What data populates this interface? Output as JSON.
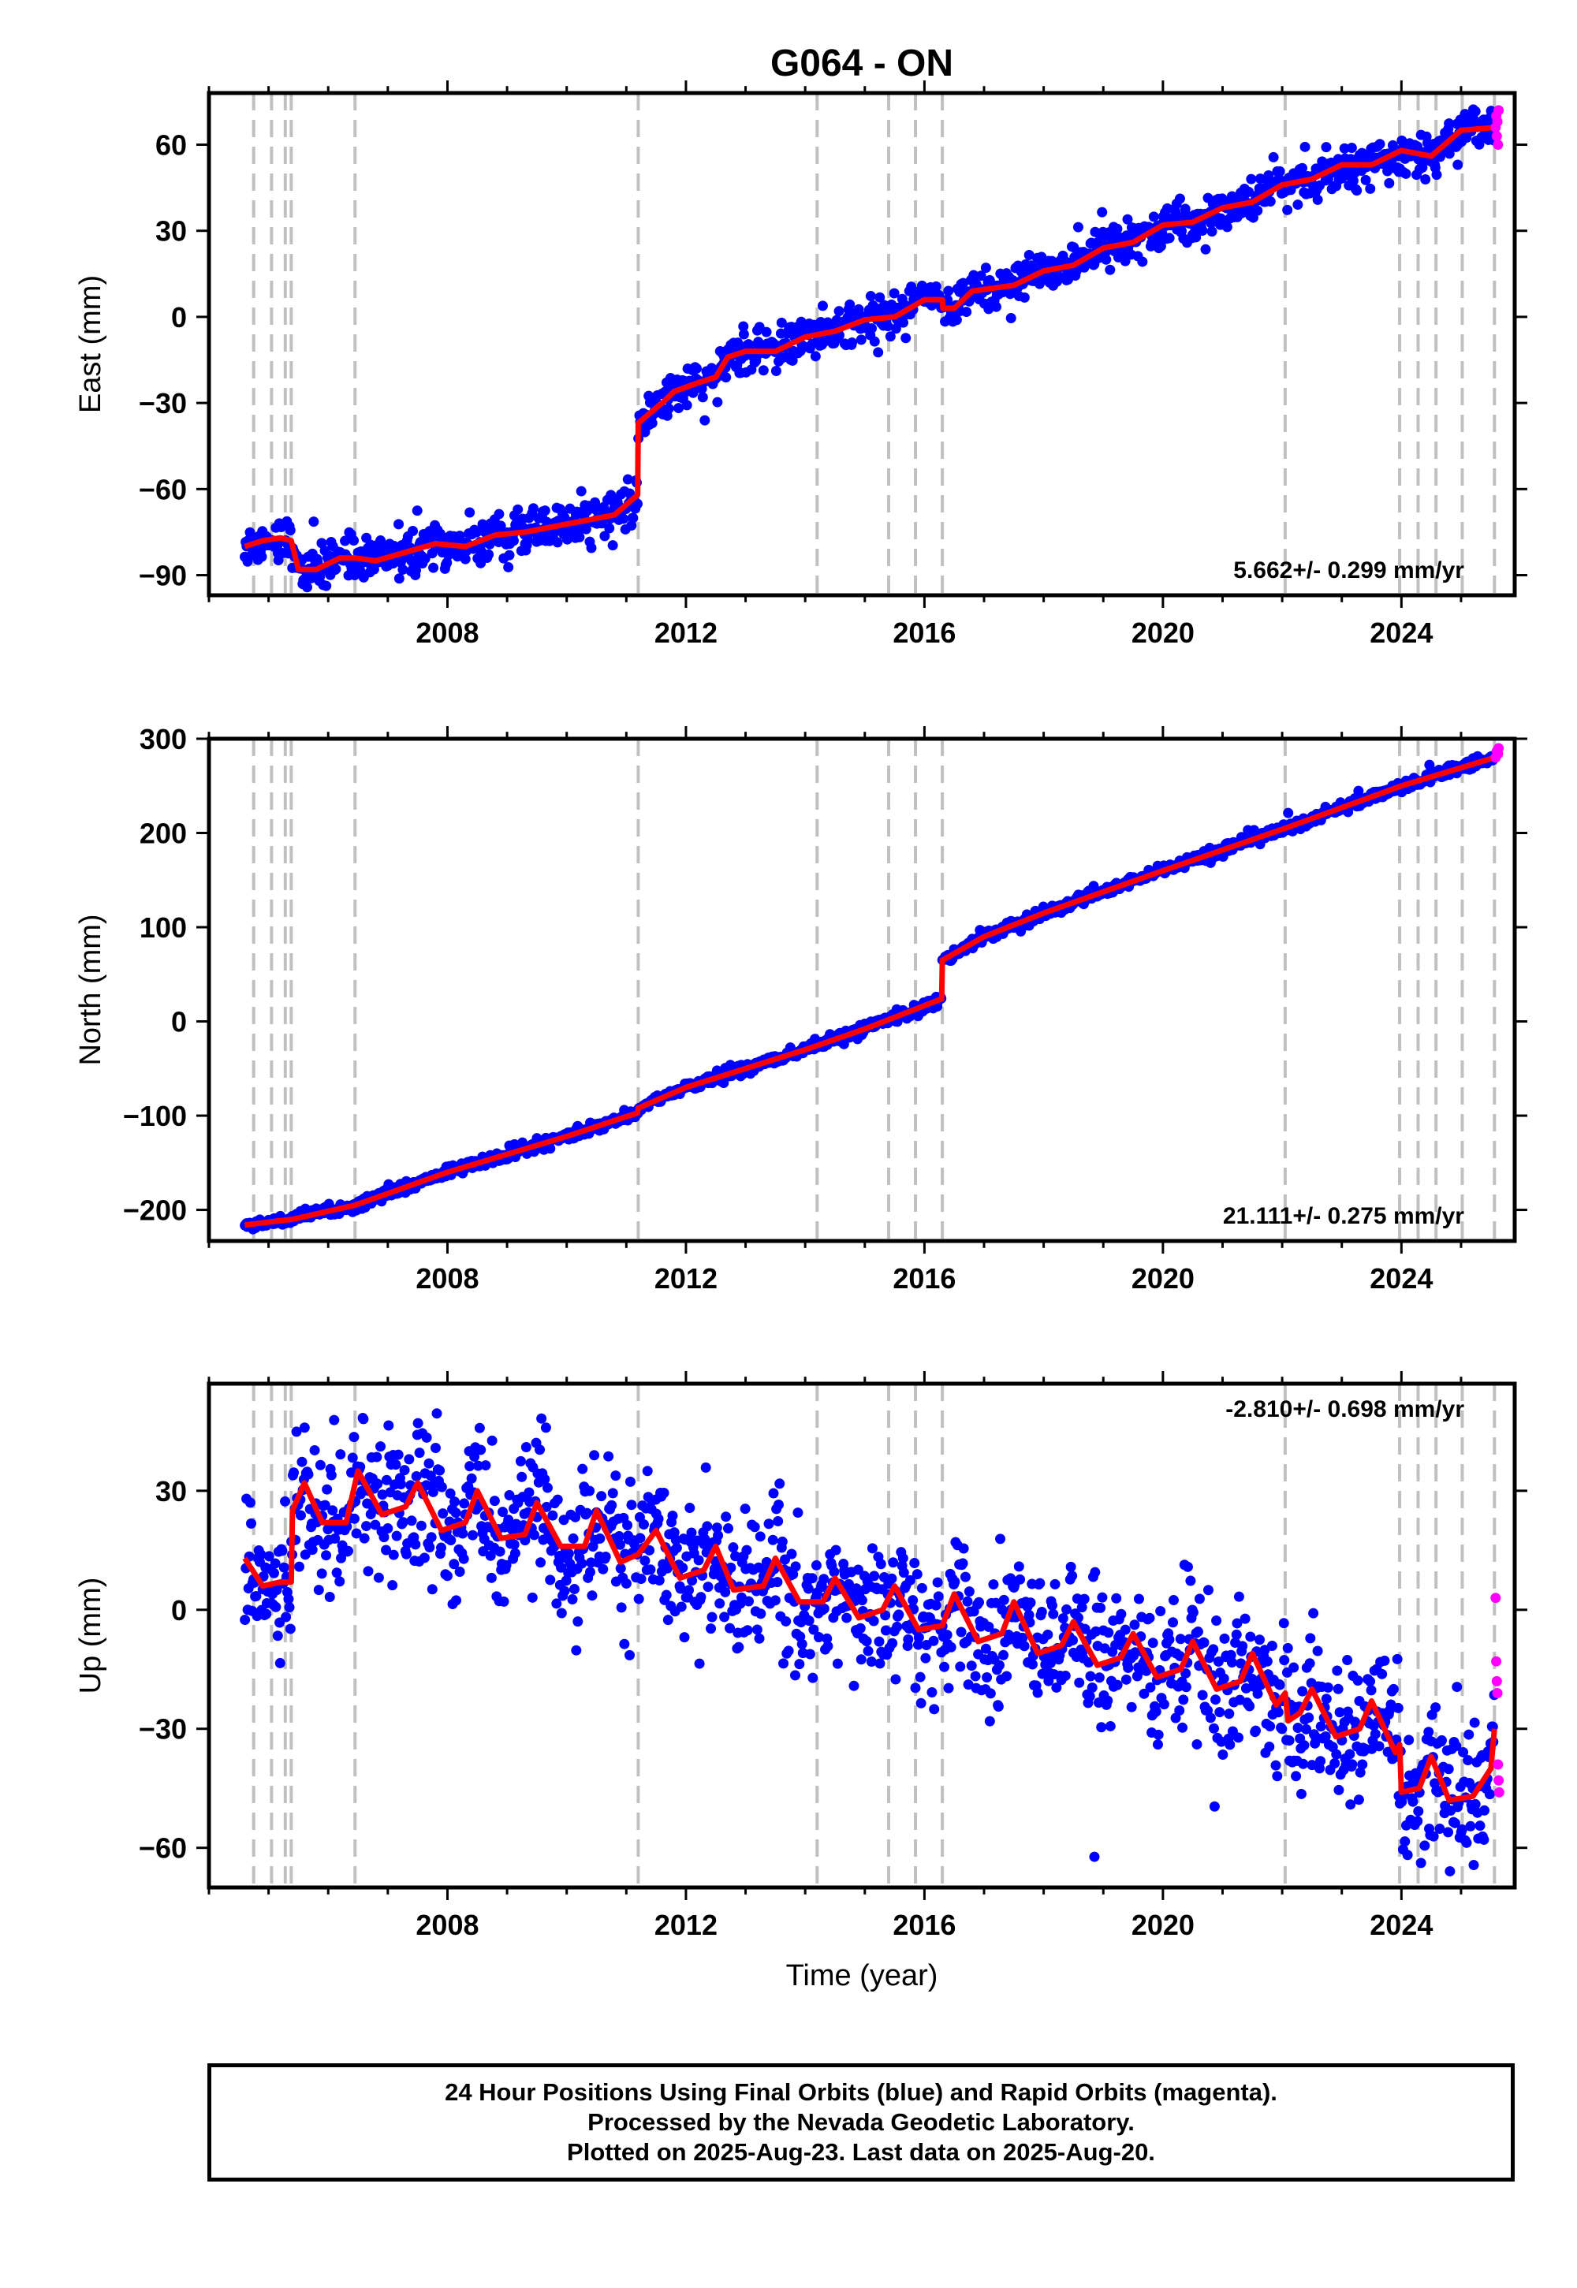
{
  "title": "G064 - ON",
  "colors": {
    "final_points": "#0000ff",
    "rapid_points": "#ff00ff",
    "model_line": "#ff0000",
    "event_lines": "#c0c0c0"
  },
  "event_lines_years": [
    2004.75,
    2005.05,
    2005.28,
    2005.38,
    2006.45,
    2011.2,
    2014.2,
    2015.4,
    2015.85,
    2016.3,
    2022.05,
    2023.97,
    2024.28,
    2024.58,
    2025.02,
    2025.56
  ],
  "x_axis_label": "Time (year)",
  "footer": {
    "line1": "24 Hour Positions Using Final Orbits (blue) and Rapid Orbits (magenta).",
    "line2": "Processed by the Nevada Geodetic Laboratory.",
    "line3": "Plotted on 2025-Aug-23. Last data on 2025-Aug-20."
  },
  "chart_data": [
    {
      "type": "scatter",
      "component": "east",
      "ylabel": "East (mm)",
      "rate_label": "5.662+/- 0.299 mm/yr",
      "rate_position": "bottom-right",
      "xlim": [
        2004.0,
        2025.9
      ],
      "ylim": [
        -97,
        78
      ],
      "x_ticks": [
        2008,
        2012,
        2016,
        2020,
        2024
      ],
      "y_ticks": [
        -90,
        -60,
        -30,
        0,
        30,
        60
      ],
      "scatter_noise_mm": 3.5,
      "model": [
        [
          2004.6,
          -80
        ],
        [
          2004.9,
          -78
        ],
        [
          2005.2,
          -77
        ],
        [
          2005.38,
          -78
        ],
        [
          2005.5,
          -88
        ],
        [
          2005.8,
          -88
        ],
        [
          2006.2,
          -84
        ],
        [
          2006.45,
          -84
        ],
        [
          2006.8,
          -85
        ],
        [
          2007.3,
          -82
        ],
        [
          2007.8,
          -79
        ],
        [
          2008.3,
          -80
        ],
        [
          2008.8,
          -76
        ],
        [
          2009.3,
          -75
        ],
        [
          2009.8,
          -73
        ],
        [
          2010.3,
          -71
        ],
        [
          2010.8,
          -69
        ],
        [
          2011.19,
          -62
        ],
        [
          2011.2,
          -37
        ],
        [
          2011.6,
          -30
        ],
        [
          2011.8,
          -26
        ],
        [
          2012.2,
          -23
        ],
        [
          2012.5,
          -21
        ],
        [
          2012.7,
          -14
        ],
        [
          2013.0,
          -12
        ],
        [
          2013.5,
          -12
        ],
        [
          2014.0,
          -7
        ],
        [
          2014.5,
          -5
        ],
        [
          2015.0,
          -1
        ],
        [
          2015.5,
          0
        ],
        [
          2016.0,
          6
        ],
        [
          2016.3,
          6
        ],
        [
          2016.31,
          3
        ],
        [
          2016.5,
          3
        ],
        [
          2016.8,
          9
        ],
        [
          2017.5,
          11
        ],
        [
          2018.0,
          16
        ],
        [
          2018.5,
          18
        ],
        [
          2019.0,
          24
        ],
        [
          2019.5,
          26
        ],
        [
          2020.0,
          32
        ],
        [
          2020.5,
          33
        ],
        [
          2021.0,
          38
        ],
        [
          2021.5,
          40
        ],
        [
          2022.0,
          46
        ],
        [
          2022.5,
          48
        ],
        [
          2023.0,
          53
        ],
        [
          2023.5,
          53
        ],
        [
          2024.0,
          58
        ],
        [
          2024.5,
          56
        ],
        [
          2025.0,
          65
        ],
        [
          2025.56,
          66
        ]
      ],
      "rapid": [
        [
          2025.58,
          66
        ],
        [
          2025.59,
          70
        ],
        [
          2025.6,
          63
        ],
        [
          2025.61,
          68
        ],
        [
          2025.62,
          60
        ],
        [
          2025.63,
          72
        ]
      ]
    },
    {
      "type": "scatter",
      "component": "north",
      "ylabel": "North (mm)",
      "rate_label": "21.111+/- 0.275 mm/yr",
      "rate_position": "bottom-right",
      "xlim": [
        2004.0,
        2025.9
      ],
      "ylim": [
        -233,
        300
      ],
      "x_ticks": [
        2008,
        2012,
        2016,
        2020,
        2024
      ],
      "y_ticks": [
        -200,
        -100,
        0,
        100,
        200,
        300
      ],
      "scatter_noise_mm": 3,
      "model": [
        [
          2004.6,
          -216
        ],
        [
          2005.4,
          -210
        ],
        [
          2006.45,
          -195
        ],
        [
          2008.0,
          -160
        ],
        [
          2010.0,
          -122
        ],
        [
          2011.19,
          -97
        ],
        [
          2011.2,
          -92
        ],
        [
          2012.0,
          -70
        ],
        [
          2014.0,
          -30
        ],
        [
          2015.0,
          -8
        ],
        [
          2016.29,
          24
        ],
        [
          2016.3,
          65
        ],
        [
          2017.0,
          90
        ],
        [
          2018.0,
          115
        ],
        [
          2020.0,
          160
        ],
        [
          2022.05,
          205
        ],
        [
          2024.0,
          250
        ],
        [
          2025.56,
          280
        ]
      ],
      "rapid": [
        [
          2025.58,
          280
        ],
        [
          2025.6,
          287
        ],
        [
          2025.62,
          284
        ],
        [
          2025.63,
          290
        ]
      ]
    },
    {
      "type": "scatter",
      "component": "up",
      "ylabel": "Up (mm)",
      "rate_label": "-2.810+/- 0.698 mm/yr",
      "rate_position": "top-right",
      "xlim": [
        2004.0,
        2025.9
      ],
      "ylim": [
        -70,
        57
      ],
      "x_ticks": [
        2008,
        2012,
        2016,
        2020,
        2024
      ],
      "y_ticks": [
        -60,
        -30,
        0,
        30
      ],
      "scatter_noise_mm": 9,
      "model": [
        [
          2004.6,
          13
        ],
        [
          2004.9,
          6
        ],
        [
          2005.2,
          7
        ],
        [
          2005.38,
          7
        ],
        [
          2005.4,
          25
        ],
        [
          2005.6,
          32
        ],
        [
          2005.9,
          22
        ],
        [
          2006.3,
          22
        ],
        [
          2006.5,
          35
        ],
        [
          2006.9,
          24
        ],
        [
          2007.3,
          26
        ],
        [
          2007.5,
          32
        ],
        [
          2007.9,
          20
        ],
        [
          2008.3,
          22
        ],
        [
          2008.5,
          30
        ],
        [
          2008.9,
          18
        ],
        [
          2009.3,
          19
        ],
        [
          2009.5,
          27
        ],
        [
          2009.9,
          16
        ],
        [
          2010.3,
          16
        ],
        [
          2010.5,
          25
        ],
        [
          2010.9,
          12
        ],
        [
          2011.2,
          14
        ],
        [
          2011.5,
          20
        ],
        [
          2011.9,
          8
        ],
        [
          2012.3,
          10
        ],
        [
          2012.5,
          16
        ],
        [
          2012.8,
          5
        ],
        [
          2013.3,
          6
        ],
        [
          2013.5,
          13
        ],
        [
          2013.9,
          2
        ],
        [
          2014.3,
          2
        ],
        [
          2014.5,
          8
        ],
        [
          2014.9,
          -2
        ],
        [
          2015.3,
          0
        ],
        [
          2015.5,
          6
        ],
        [
          2015.9,
          -5
        ],
        [
          2016.3,
          -4
        ],
        [
          2016.5,
          4
        ],
        [
          2016.9,
          -8
        ],
        [
          2017.3,
          -6
        ],
        [
          2017.5,
          2
        ],
        [
          2017.9,
          -11
        ],
        [
          2018.3,
          -9
        ],
        [
          2018.5,
          -3
        ],
        [
          2018.9,
          -14
        ],
        [
          2019.3,
          -12
        ],
        [
          2019.5,
          -6
        ],
        [
          2019.9,
          -17
        ],
        [
          2020.3,
          -15
        ],
        [
          2020.5,
          -8
        ],
        [
          2020.9,
          -20
        ],
        [
          2021.3,
          -18
        ],
        [
          2021.5,
          -11
        ],
        [
          2021.9,
          -24
        ],
        [
          2022.05,
          -21
        ],
        [
          2022.1,
          -28
        ],
        [
          2022.3,
          -26
        ],
        [
          2022.5,
          -20
        ],
        [
          2022.9,
          -32
        ],
        [
          2023.3,
          -30
        ],
        [
          2023.5,
          -23
        ],
        [
          2023.9,
          -36
        ],
        [
          2023.97,
          -34
        ],
        [
          2024.0,
          -46
        ],
        [
          2024.3,
          -45
        ],
        [
          2024.5,
          -37
        ],
        [
          2024.8,
          -48
        ],
        [
          2025.2,
          -47
        ],
        [
          2025.5,
          -40
        ],
        [
          2025.56,
          -30
        ]
      ],
      "rapid": [
        [
          2025.58,
          3
        ],
        [
          2025.59,
          -13
        ],
        [
          2025.6,
          -18
        ],
        [
          2025.61,
          -21
        ],
        [
          2025.62,
          -39
        ],
        [
          2025.63,
          -43
        ],
        [
          2025.64,
          -46
        ]
      ]
    }
  ]
}
